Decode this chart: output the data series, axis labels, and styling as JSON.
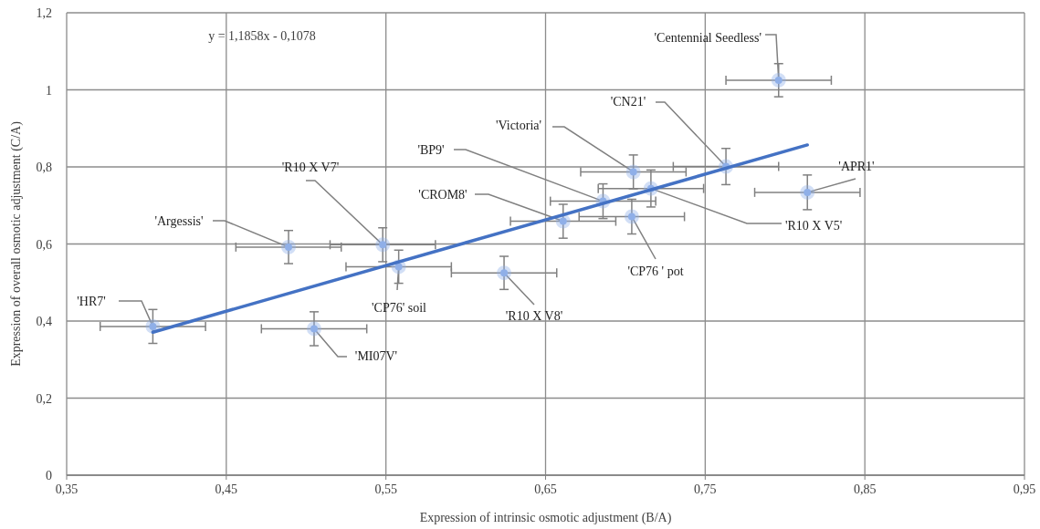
{
  "chart_data": {
    "type": "scatter",
    "xlabel": "Expression of intrinsic osmotic adjustment (B/A)",
    "ylabel": "Expression of overall osmotic adjustment (C/A)",
    "xlim": [
      0.35,
      0.95
    ],
    "xticks": [
      {
        "value": 0.35,
        "label": "0,35"
      },
      {
        "value": 0.45,
        "label": "0,45"
      },
      {
        "value": 0.55,
        "label": "0,55"
      },
      {
        "value": 0.65,
        "label": "0,65"
      },
      {
        "value": 0.75,
        "label": "0,75"
      },
      {
        "value": 0.85,
        "label": "0,85"
      },
      {
        "value": 0.95,
        "label": "0,95"
      }
    ],
    "ylim": [
      0,
      1.2
    ],
    "yticks": [
      0,
      {
        "value": 0.2,
        "label": "0,2"
      },
      {
        "value": 0.4,
        "label": "0,4"
      },
      {
        "value": 0.6,
        "label": "0,6"
      },
      {
        "value": 0.8,
        "label": "0,8"
      },
      1,
      {
        "value": 1.2,
        "label": "1,2"
      }
    ],
    "grid": true,
    "marker": "circle",
    "series": [
      {
        "type": "scatter",
        "color": "#8fb0e8",
        "x": [
          0.404,
          0.489,
          0.548,
          0.558,
          0.505,
          0.624,
          0.661,
          0.686,
          0.705,
          0.763,
          0.716,
          0.814,
          0.704,
          0.796
        ],
        "values": [
          0.386,
          0.592,
          0.598,
          0.541,
          0.38,
          0.525,
          0.659,
          0.711,
          0.787,
          0.801,
          0.744,
          0.734,
          0.671,
          1.025
        ],
        "errors": [
          0.044,
          0.043,
          0.044,
          0.043,
          0.044,
          0.043,
          0.044,
          0.045,
          0.044,
          0.047,
          0.048,
          0.045,
          0.045,
          0.043
        ],
        "xerrors": [
          0.033,
          0.033,
          0.033,
          0.033,
          0.033,
          0.033,
          0.033,
          0.033,
          0.033,
          0.033,
          0.033,
          0.033,
          0.033,
          0.033
        ]
      },
      {
        "type": "line",
        "color": "#4472c4",
        "marker": "none",
        "x": [
          0.404,
          0.814
        ],
        "values": [
          0.371,
          0.857
        ]
      }
    ],
    "annotations": [
      {
        "text": "'HR7'",
        "x": 0.404,
        "y": 0.386
      },
      {
        "text": "'Argessis'",
        "x": 0.489,
        "y": 0.592
      },
      {
        "text": "'R10 X V7'",
        "x": 0.548,
        "y": 0.598
      },
      {
        "text": "'CP76' soil",
        "x": 0.558,
        "y": 0.541
      },
      {
        "text": "'MI07V'",
        "x": 0.505,
        "y": 0.38
      },
      {
        "text": "'R10 X V8'",
        "x": 0.624,
        "y": 0.525
      },
      {
        "text": "'CROM8'",
        "x": 0.661,
        "y": 0.659
      },
      {
        "text": "'BP9'",
        "x": 0.686,
        "y": 0.711
      },
      {
        "text": "'Victoria'",
        "x": 0.705,
        "y": 0.787
      },
      {
        "text": "'CN21'",
        "x": 0.763,
        "y": 0.801
      },
      {
        "text": "'R10 X V5'",
        "x": 0.716,
        "y": 0.744
      },
      {
        "text": "'APR1'",
        "x": 0.814,
        "y": 0.734
      },
      {
        "text": "'CP76 ' pot",
        "x": 0.704,
        "y": 0.671
      },
      {
        "text": "'Centennial Seedless'",
        "x": 0.796,
        "y": 1.025
      },
      "y = 1,1858x - 0,1078"
    ]
  }
}
